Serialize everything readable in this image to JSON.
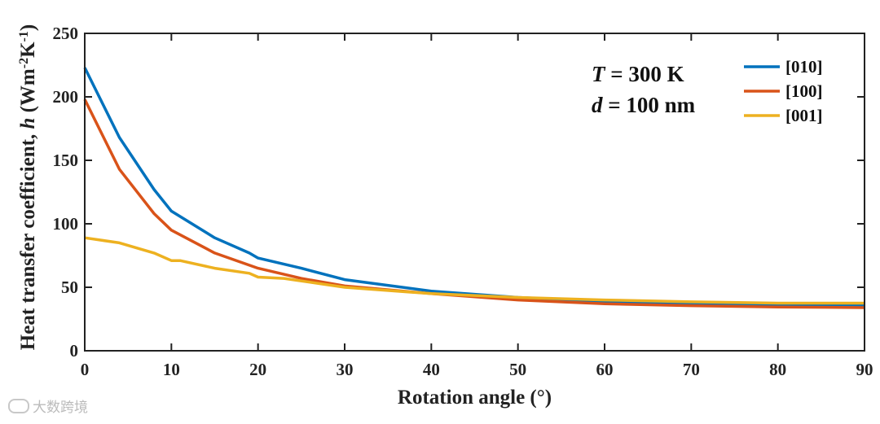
{
  "chart_data": {
    "type": "line",
    "title": "",
    "xlabel": "Rotation angle (°)",
    "ylabel": {
      "main": "Heat transfer coefficient, ",
      "symbol": "h",
      "units_open": " (Wm",
      "exp1": "-2",
      "units_mid": "K",
      "exp2": "-1",
      "units_close": ")"
    },
    "xlim": [
      0,
      90
    ],
    "ylim": [
      0,
      250
    ],
    "xticks": [
      "0",
      "10",
      "20",
      "30",
      "40",
      "50",
      "60",
      "70",
      "80",
      "90"
    ],
    "yticks": [
      "0",
      "50",
      "100",
      "150",
      "200",
      "250"
    ],
    "grid": false,
    "legend_position": "top-right",
    "annotations": [
      {
        "var": "T",
        "rest": " = 300 K"
      },
      {
        "var": "d",
        "rest": " = 100 nm"
      }
    ],
    "series": [
      {
        "name": "[010]",
        "color": "#0072BD",
        "x": [
          0,
          4,
          8,
          10,
          15,
          19,
          20,
          25,
          30,
          40,
          50,
          60,
          70,
          80,
          90
        ],
        "y": [
          223,
          168,
          127,
          110,
          89,
          77,
          73,
          65,
          56,
          47,
          42,
          39,
          37.5,
          36.5,
          36
        ]
      },
      {
        "name": "[100]",
        "color": "#D95319",
        "x": [
          0,
          4,
          8,
          10,
          15,
          20,
          25,
          30,
          40,
          50,
          60,
          70,
          80,
          90
        ],
        "y": [
          198,
          143,
          108,
          95,
          77,
          65,
          57,
          51,
          45,
          40,
          37,
          35.5,
          34.5,
          34
        ]
      },
      {
        "name": "[001]",
        "color": "#EDB120",
        "x": [
          0,
          4,
          8,
          10,
          11,
          15,
          19,
          20,
          23,
          30,
          40,
          50,
          60,
          70,
          80,
          90
        ],
        "y": [
          89,
          85,
          77,
          71,
          71,
          65,
          61,
          58,
          57,
          50,
          45,
          42,
          40,
          38.5,
          37.5,
          37.5
        ]
      }
    ]
  },
  "watermark": {
    "text": "大数跨境"
  }
}
